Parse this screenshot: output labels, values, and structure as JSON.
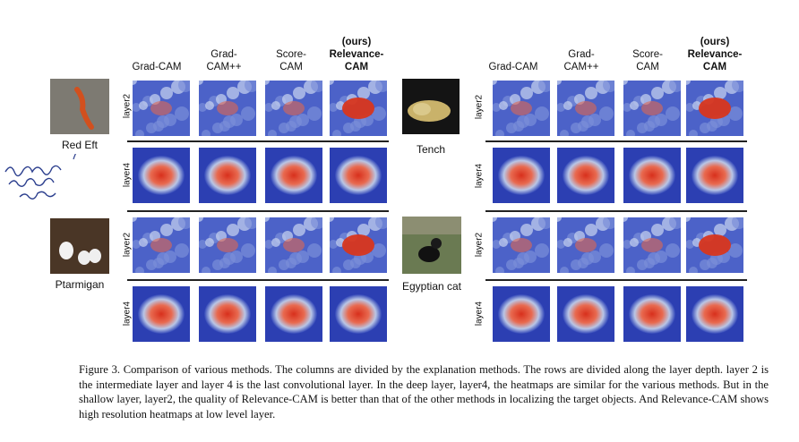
{
  "figure": {
    "left_panel": {
      "columns": [
        {
          "line1": "",
          "line2": "Grad-CAM",
          "bold": false
        },
        {
          "line1": "Grad-",
          "line2": "CAM++",
          "bold": false
        },
        {
          "line1": "Score-",
          "line2": "CAM",
          "bold": false
        },
        {
          "line1": "(ours)",
          "line2": "Relevance-",
          "line3": "CAM",
          "bold": true
        }
      ],
      "samples": [
        {
          "label": "Red Eft",
          "rows": [
            "layer2",
            "layer4"
          ]
        },
        {
          "label": "Ptarmigan",
          "rows": [
            "layer2",
            "layer4"
          ]
        }
      ]
    },
    "right_panel": {
      "columns": [
        {
          "line1": "",
          "line2": "Grad-CAM",
          "bold": false
        },
        {
          "line1": "Grad-",
          "line2": "CAM++",
          "bold": false
        },
        {
          "line1": "Score-",
          "line2": "CAM",
          "bold": false
        },
        {
          "line1": "(ours)",
          "line2": "Relevance-",
          "line3": "CAM",
          "bold": true
        }
      ],
      "samples": [
        {
          "label": "Tench",
          "rows": [
            "layer2",
            "layer4"
          ]
        },
        {
          "label": "Egyptian cat",
          "rows": [
            "layer2",
            "layer4"
          ]
        }
      ]
    },
    "handwritten_note": "gradient 같으면 noisy 해석",
    "caption": "Figure 3. Comparison of various methods. The columns are divided by the explanation methods. The rows are divided along the layer depth. layer 2 is the intermediate layer and layer 4 is the last convolutional layer. In the deep layer, layer4, the heatmaps are similar for the various methods. But in the shallow layer, layer2, the quality of Relevance-CAM is better than that of the other methods in localizing the target objects. And Relevance-CAM shows high resolution heatmaps at low level layer."
  }
}
